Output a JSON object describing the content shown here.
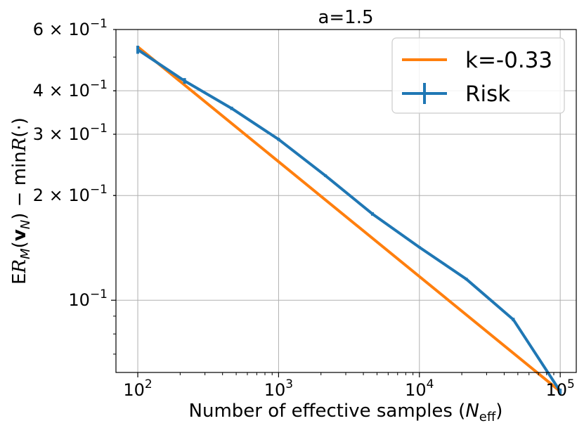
{
  "chart_data": {
    "type": "line",
    "title": "a=1.5",
    "xlabel": "Number of effective samples (N_eff)",
    "ylabel": "ER_M(v_N) − minR(·)",
    "x_scale": "log",
    "y_scale": "log",
    "xlim": [
      70,
      130000
    ],
    "ylim": [
      0.062,
      0.6
    ],
    "grid": true,
    "legend_position": "top-right",
    "x_ticks": [
      {
        "value": 100,
        "base": "10",
        "exp": "2"
      },
      {
        "value": 1000,
        "base": "10",
        "exp": "3"
      },
      {
        "value": 10000,
        "base": "10",
        "exp": "4"
      },
      {
        "value": 100000,
        "base": "10",
        "exp": "5"
      }
    ],
    "y_ticks": [
      {
        "value": 0.6,
        "mantissa": "6 × ",
        "base": "10",
        "exp": "−1"
      },
      {
        "value": 0.4,
        "mantissa": "4 × ",
        "base": "10",
        "exp": "−1"
      },
      {
        "value": 0.3,
        "mantissa": "3 × ",
        "base": "10",
        "exp": "−1"
      },
      {
        "value": 0.2,
        "mantissa": "2 × ",
        "base": "10",
        "exp": "−1"
      },
      {
        "value": 0.1,
        "mantissa": "",
        "base": "10",
        "exp": "−1"
      }
    ],
    "series": [
      {
        "name": "k=-0.33",
        "color": "#ff7f0e",
        "style": "line",
        "x": [
          100,
          100000
        ],
        "y": [
          0.535,
          0.0547
        ]
      },
      {
        "name": "Risk",
        "color": "#1f77b4",
        "style": "errorbar",
        "x": [
          100,
          215,
          464,
          1000,
          2154,
          4642,
          10000,
          21544,
          46416,
          100000
        ],
        "y": [
          0.525,
          0.427,
          0.356,
          0.29,
          0.228,
          0.177,
          0.142,
          0.115,
          0.088,
          0.0547
        ],
        "err": [
          0.014,
          0.008,
          0.004,
          0.003,
          0.002,
          0.002,
          0.001,
          0.001,
          0.001,
          0.001
        ]
      }
    ]
  }
}
